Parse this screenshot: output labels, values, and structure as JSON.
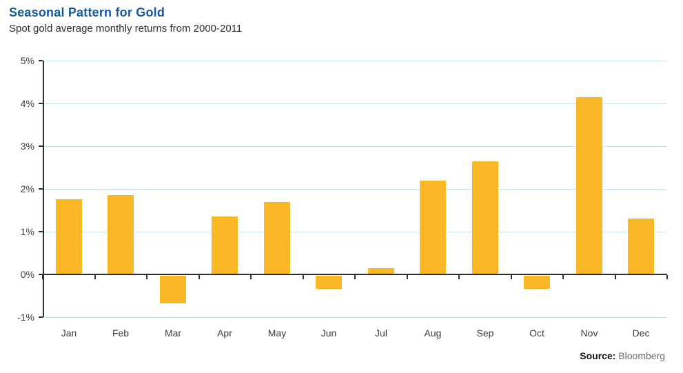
{
  "header": {
    "title": "Seasonal Pattern for Gold",
    "subtitle": "Spot gold average monthly returns from 2000-2011"
  },
  "chart_data": {
    "type": "bar",
    "title": "Seasonal Pattern for Gold",
    "subtitle": "Spot gold average monthly returns from 2000-2011",
    "categories": [
      "Jan",
      "Feb",
      "Mar",
      "Apr",
      "May",
      "Jun",
      "Jul",
      "Aug",
      "Sep",
      "Oct",
      "Nov",
      "Dec"
    ],
    "values": [
      1.75,
      1.85,
      -0.65,
      1.35,
      1.7,
      -0.3,
      0.15,
      2.2,
      2.65,
      -0.3,
      4.15,
      1.3
    ],
    "xlabel": "",
    "ylabel": "",
    "ylim": [
      -1,
      5
    ],
    "ytick_step": 1,
    "ytick_labels": [
      "-1%",
      "0%",
      "1%",
      "2%",
      "3%",
      "4%",
      "5%"
    ],
    "grid": true,
    "legend": "none"
  },
  "source": {
    "label": "Source:",
    "value": "Bloomberg"
  },
  "colors": {
    "title_blue": "#15599F",
    "bar_gold": "#FBB826",
    "gridline_blue": "#C9E2EB",
    "axis_dark": "#2f2f2f",
    "label_gray": "#3d3d3d"
  }
}
